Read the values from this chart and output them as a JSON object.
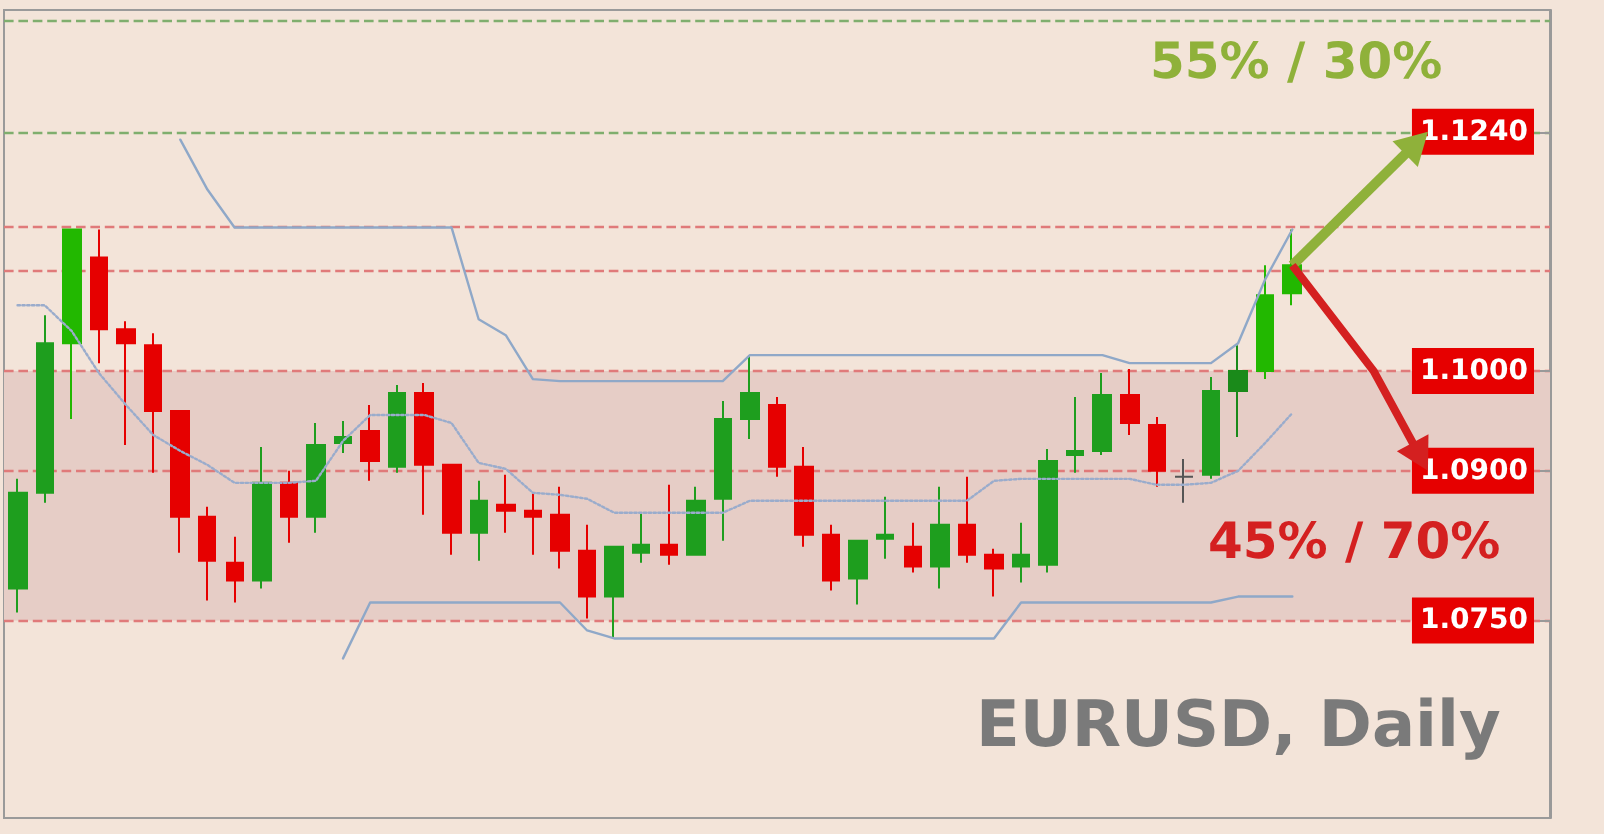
{
  "chart_data": {
    "type": "candlestick",
    "categories": [
      null,
      null,
      null,
      null,
      null,
      null,
      null,
      null,
      null,
      null,
      null,
      null,
      null,
      null,
      null,
      null,
      null,
      null,
      null,
      null,
      null,
      null,
      null,
      null,
      null,
      null,
      null,
      null,
      null,
      null,
      null,
      null,
      null,
      null,
      null,
      null,
      null,
      null,
      null,
      null,
      null,
      null,
      null,
      null,
      null,
      null,
      null,
      null,
      null,
      null,
      null,
      null,
      null,
      null,
      null,
      null,
      null
    ],
    "ohlc": [
      [
        1.0782,
        1.0892,
        1.0758,
        1.0878
      ],
      [
        1.0878,
        1.1056,
        1.0868,
        1.1028
      ],
      [
        1.1028,
        1.1142,
        1.0952,
        1.1142
      ],
      [
        1.1114,
        1.1142,
        1.1008,
        1.1042
      ],
      [
        1.1042,
        1.105,
        1.0926,
        1.1028
      ],
      [
        1.1026,
        1.1038,
        1.0898,
        1.096
      ],
      [
        1.096,
        1.096,
        1.0818,
        1.0854
      ],
      [
        1.0854,
        1.0864,
        1.077,
        1.081
      ],
      [
        1.0808,
        1.0834,
        1.0768,
        1.079
      ],
      [
        1.079,
        1.0924,
        1.0782,
        1.0888
      ],
      [
        1.0888,
        1.09,
        1.0828,
        1.0854
      ],
      [
        1.0854,
        1.0948,
        1.0838,
        1.0926
      ],
      [
        1.0928,
        1.095,
        1.0918,
        1.0934
      ],
      [
        1.094,
        1.0966,
        1.089,
        1.091
      ],
      [
        1.0904,
        1.0986,
        1.0898,
        1.0978
      ],
      [
        1.0978,
        1.0988,
        1.0856,
        1.0906
      ],
      [
        1.0906,
        1.0906,
        1.0816,
        1.0838
      ],
      [
        1.0838,
        1.089,
        1.081,
        1.087
      ],
      [
        1.0866,
        1.0896,
        1.0838,
        1.086
      ],
      [
        1.086,
        1.0878,
        1.0816,
        1.0854
      ],
      [
        1.0856,
        1.0884,
        1.0802,
        1.082
      ],
      [
        1.082,
        1.0846,
        1.0752,
        1.0774
      ],
      [
        1.0774,
        1.0824,
        1.0732,
        1.0824
      ],
      [
        1.0818,
        1.0858,
        1.0808,
        1.0826
      ],
      [
        1.0826,
        1.0886,
        1.0806,
        1.0816
      ],
      [
        1.0816,
        1.0884,
        1.0816,
        1.087
      ],
      [
        1.0872,
        1.097,
        1.083,
        1.0952
      ],
      [
        1.0952,
        1.1016,
        1.0932,
        1.0978
      ],
      [
        1.0966,
        1.0974,
        1.0894,
        1.0904
      ],
      [
        1.0904,
        1.0924,
        1.0824,
        1.0836
      ],
      [
        1.0836,
        1.0846,
        1.078,
        1.079
      ],
      [
        1.0792,
        1.083,
        1.0766,
        1.083
      ],
      [
        1.0832,
        1.0874,
        1.0812,
        1.0836
      ],
      [
        1.0824,
        1.0848,
        1.0798,
        1.0804
      ],
      [
        1.0804,
        1.0884,
        1.0782,
        1.0846
      ],
      [
        1.0846,
        1.0894,
        1.0808,
        1.0816
      ],
      [
        1.0816,
        1.0822,
        1.0774,
        1.0802
      ],
      [
        1.0804,
        1.0848,
        1.0788,
        1.0816
      ],
      [
        1.0806,
        1.0922,
        1.0798,
        1.091
      ],
      [
        1.0916,
        1.0974,
        1.0898,
        1.092
      ],
      [
        1.092,
        1.0998,
        1.0916,
        1.0976
      ],
      [
        1.0976,
        1.1002,
        1.0936,
        1.0948
      ],
      [
        1.0946,
        1.0954,
        1.0884,
        1.09
      ],
      [
        1.0894,
        1.0912,
        1.0868,
        1.0894
      ],
      [
        1.0896,
        1.0994,
        1.0892,
        1.098
      ],
      [
        1.098,
        1.1026,
        1.0934,
        1.1
      ],
      [
        1.1,
        1.1106,
        1.0992,
        1.1076
      ],
      [
        1.1078,
        1.1142,
        1.1066,
        1.1106
      ],
      null,
      null,
      null,
      null,
      null,
      null,
      null,
      null,
      null
    ],
    "colors": [
      "#1e9e1e",
      "#1e9e1e",
      "#22b800",
      "#e60000",
      "#e60000",
      "#e60000",
      "#e60000",
      "#e60000",
      "#e60000",
      "#1e9e1e",
      "#e60000",
      "#1e9e1e",
      "#1e9e1e",
      "#e60000",
      "#1e9e1e",
      "#e60000",
      "#e60000",
      "#1e9e1e",
      "#e60000",
      "#e60000",
      "#e60000",
      "#e60000",
      "#1e9e1e",
      "#1e9e1e",
      "#e60000",
      "#1e9e1e",
      "#1e9e1e",
      "#1e9e1e",
      "#e60000",
      "#e60000",
      "#e60000",
      "#1e9e1e",
      "#1e9e1e",
      "#e60000",
      "#1e9e1e",
      "#e60000",
      "#e60000",
      "#1e9e1e",
      "#1e9e1e",
      "#1e9e1e",
      "#1e9e1e",
      "#e60000",
      "#e60000",
      "#555555",
      "#1e9e1e",
      "#1a8a1a",
      "#22b800",
      "#22b800",
      null,
      null,
      null,
      null,
      null,
      null,
      null,
      null,
      null
    ],
    "series": [
      {
        "type": "line",
        "color": "#8fa8c8",
        "line_style": "solid",
        "values": [
          null,
          null,
          null,
          null,
          null,
          null,
          1.1232,
          1.1182,
          1.1144,
          1.1144,
          1.1144,
          1.1144,
          1.1144,
          1.1144,
          1.1144,
          1.1144,
          1.1144,
          1.1052,
          1.1036,
          1.0992,
          1.099,
          1.099,
          1.099,
          1.099,
          1.099,
          1.099,
          1.099,
          1.1016,
          1.1016,
          1.1016,
          1.1016,
          1.1016,
          1.1016,
          1.1016,
          1.1016,
          1.1016,
          1.1016,
          1.1016,
          1.1016,
          1.1016,
          1.1016,
          1.1008,
          1.1008,
          1.1008,
          1.1008,
          1.1028,
          1.1092,
          1.1142,
          null,
          null,
          null,
          null,
          null,
          null,
          null,
          null,
          null
        ]
      },
      {
        "type": "line",
        "color": "#9aaccc",
        "line_style": "dotted",
        "values": [
          1.1066,
          1.1066,
          1.104,
          1.0998,
          1.0966,
          1.0936,
          1.092,
          1.0906,
          1.0888,
          1.0888,
          1.0888,
          1.089,
          1.093,
          1.0956,
          1.0956,
          1.0956,
          1.0948,
          1.0908,
          1.0902,
          1.0878,
          1.0876,
          1.0872,
          1.0858,
          1.0858,
          1.0858,
          1.0858,
          1.0858,
          1.087,
          1.087,
          1.087,
          1.087,
          1.087,
          1.087,
          1.087,
          1.087,
          1.087,
          1.089,
          1.0892,
          1.0892,
          1.0892,
          1.0892,
          1.0892,
          1.0886,
          1.0886,
          1.0888,
          1.09,
          1.0928,
          1.0958,
          null,
          null,
          null,
          null,
          null,
          null,
          null,
          null,
          null
        ]
      },
      {
        "type": "line",
        "color": "#8fa8c8",
        "line_style": "solid",
        "values": [
          null,
          null,
          null,
          null,
          null,
          null,
          null,
          null,
          null,
          null,
          null,
          null,
          1.0712,
          1.0768,
          1.0768,
          1.0768,
          1.0768,
          1.0768,
          1.0768,
          1.0768,
          1.0768,
          1.074,
          1.0732,
          1.0732,
          1.0732,
          1.0732,
          1.0732,
          1.0732,
          1.0732,
          1.0732,
          1.0732,
          1.0732,
          1.0732,
          1.0732,
          1.0732,
          1.0732,
          1.0732,
          1.0768,
          1.0768,
          1.0768,
          1.0768,
          1.0768,
          1.0768,
          1.0768,
          1.0768,
          1.0774,
          1.0774,
          1.0774,
          null,
          null,
          null,
          null,
          null,
          null,
          null,
          null,
          null
        ]
      }
    ],
    "ylim": [
      1.0552,
      1.1362
    ],
    "yticks": [
      {
        "value": 1.075,
        "label": "1.0750"
      },
      {
        "value": 1.09,
        "label": "1.0900"
      },
      {
        "value": 1.1,
        "label": "1.1000"
      },
      {
        "value": 1.124,
        "label": "1.1240"
      }
    ],
    "ref_lines": [
      {
        "axis": "y",
        "value": 1.1352,
        "color": "#7fae6e",
        "line_style": "dashed"
      },
      {
        "axis": "y",
        "value": 1.124,
        "color": "#7fae6e",
        "line_style": "dashed"
      },
      {
        "axis": "y",
        "value": 1.1144,
        "color": "#e07a7a",
        "line_style": "dashed"
      },
      {
        "axis": "y",
        "value": 1.11,
        "color": "#e07a7a",
        "line_style": "dashed"
      },
      {
        "axis": "y",
        "value": 1.1,
        "color": "#e07a7a",
        "line_style": "dashed"
      },
      {
        "axis": "y",
        "value": 1.09,
        "color": "#e07a7a",
        "line_style": "dashed"
      },
      {
        "axis": "y",
        "value": 1.075,
        "color": "#e07a7a",
        "line_style": "dashed"
      }
    ],
    "bands": [
      {
        "axis": "y",
        "from": 1.075,
        "to": 1.1,
        "color": "#e6cdc6"
      }
    ],
    "annotations": [
      "55% / 30%",
      "45% / 70%",
      "EURUSD, Daily"
    ],
    "grid": false
  }
}
